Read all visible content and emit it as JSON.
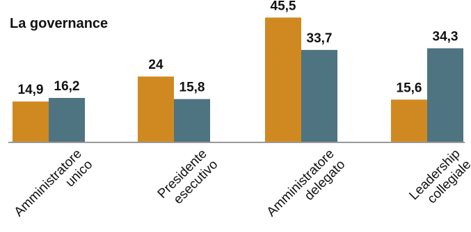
{
  "chart_data": {
    "type": "bar",
    "title": "La governance",
    "categories": [
      [
        "Amministratore",
        "unico"
      ],
      [
        "Presidente",
        "esecutivo"
      ],
      [
        "Amministratore",
        "delegato"
      ],
      [
        "Leadership",
        "collegiale"
      ]
    ],
    "series": [
      {
        "values": [
          14.9,
          24,
          45.5,
          15.6
        ],
        "color": "#D08920"
      },
      {
        "values": [
          16.2,
          15.8,
          33.7,
          34.3
        ],
        "color": "#4E7381"
      }
    ],
    "value_labels": [
      [
        "14,9",
        "24",
        "45,5",
        "15,6"
      ],
      [
        "16,2",
        "15,8",
        "33,7",
        "34,3"
      ]
    ],
    "ylim": [
      0,
      50
    ],
    "grid": false,
    "legend": "none"
  }
}
